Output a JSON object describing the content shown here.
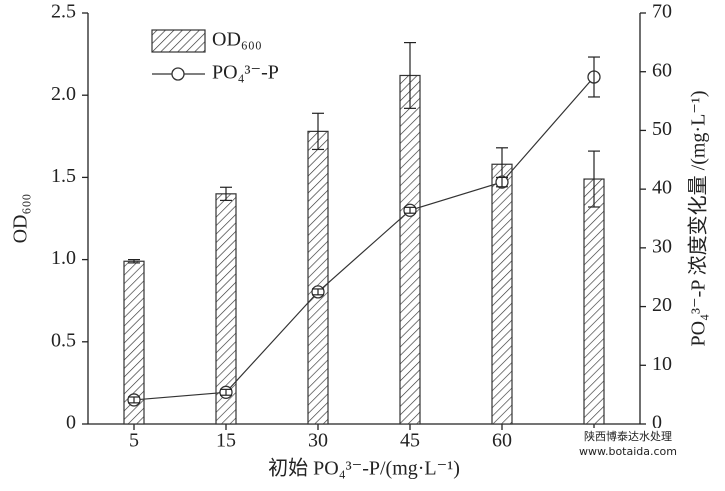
{
  "chart_data": {
    "type": "bar",
    "x_label": "初始 PO₄³⁻-P/(mg·L⁻¹)",
    "y_label": "OD₆₀₀",
    "y2_label": "PO₄³⁻-P 浓度变化量 /(mg·L⁻¹)",
    "categories": [
      "5",
      "15",
      "30",
      "45",
      "60",
      null
    ],
    "series": [
      {
        "name": "OD₆₀₀",
        "type": "bar",
        "color": "#333333",
        "axis": "y",
        "values": [
          0.99,
          1.4,
          1.78,
          2.12,
          1.58,
          1.49
        ],
        "errors": [
          0.01,
          0.04,
          0.11,
          0.2,
          0.1,
          0.17
        ]
      },
      {
        "name": "PO₄³⁻-P",
        "type": "line",
        "color": "#333333",
        "axis": "y2",
        "values": [
          4.1,
          5.4,
          22.5,
          36.4,
          41.2,
          59.1
        ],
        "errors": [
          0.5,
          0.5,
          0.5,
          0.5,
          0.8,
          3.4
        ]
      }
    ],
    "ylim": [
      0,
      2.5
    ],
    "yticks": [
      0,
      0.5,
      {
        "value": 1,
        "label": "1.0"
      },
      1.5,
      {
        "value": 2,
        "label": "2.0"
      },
      2.5
    ],
    "y2lim": [
      0,
      70
    ],
    "y2ticks": [
      0,
      10,
      20,
      30,
      40,
      50,
      60,
      70
    ],
    "legend": "upper left",
    "annotations": [
      "陕西博泰达水处理",
      "www.botaida.com"
    ]
  }
}
